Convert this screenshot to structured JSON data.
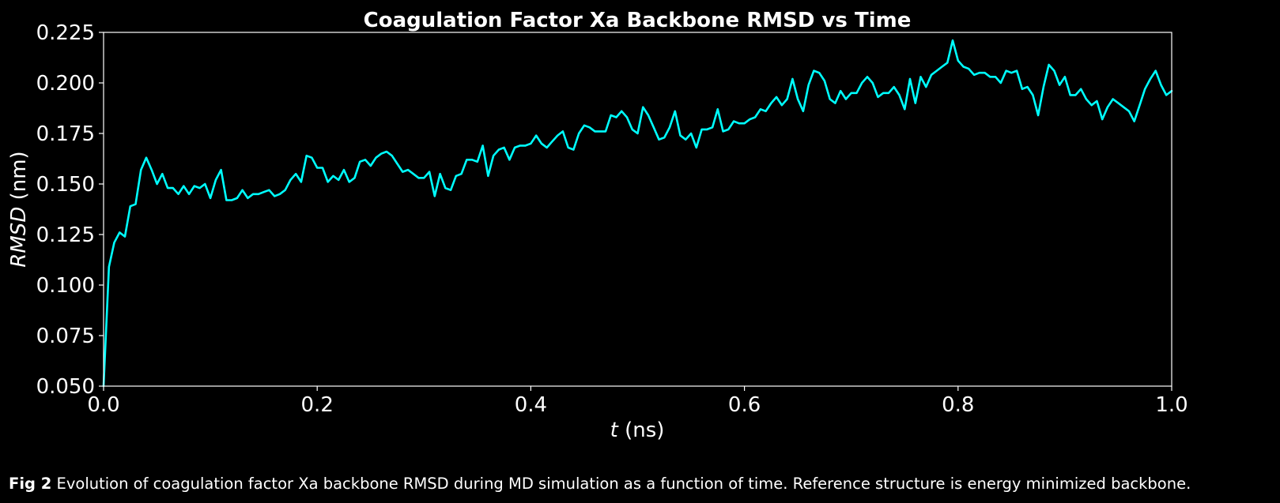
{
  "chart_data": {
    "type": "line",
    "title": "Coagulation Factor Xa Backbone RMSD vs Time",
    "xlabel_var": "t",
    "xlabel_unit": " (ns)",
    "ylabel_var": "RMSD",
    "ylabel_unit": " (nm)",
    "xlim": [
      0.0,
      1.0
    ],
    "ylim": [
      0.05,
      0.225
    ],
    "xticks": [
      "0.0",
      "0.2",
      "0.4",
      "0.6",
      "0.8",
      "1.0"
    ],
    "yticks": [
      "0.050",
      "0.075",
      "0.100",
      "0.125",
      "0.150",
      "0.175",
      "0.200",
      "0.225"
    ],
    "grid": false,
    "line_color": "#00ffff",
    "series": [
      {
        "x": [
          0.0,
          0.005,
          0.01,
          0.015,
          0.02,
          0.025,
          0.03,
          0.035,
          0.04,
          0.045,
          0.05,
          0.055,
          0.06,
          0.065,
          0.07,
          0.075,
          0.08,
          0.085,
          0.09,
          0.095,
          0.1,
          0.105,
          0.11,
          0.115,
          0.12,
          0.125,
          0.13,
          0.135,
          0.14,
          0.145,
          0.15,
          0.155,
          0.16,
          0.165,
          0.17,
          0.175,
          0.18,
          0.185,
          0.19,
          0.195,
          0.2,
          0.205,
          0.21,
          0.215,
          0.22,
          0.225,
          0.23,
          0.235,
          0.24,
          0.245,
          0.25,
          0.255,
          0.26,
          0.265,
          0.27,
          0.275,
          0.28,
          0.285,
          0.29,
          0.295,
          0.3,
          0.305,
          0.31,
          0.315,
          0.32,
          0.325,
          0.33,
          0.335,
          0.34,
          0.345,
          0.35,
          0.355,
          0.36,
          0.365,
          0.37,
          0.375,
          0.38,
          0.385,
          0.39,
          0.395,
          0.4,
          0.405,
          0.41,
          0.415,
          0.42,
          0.425,
          0.43,
          0.435,
          0.44,
          0.445,
          0.45,
          0.455,
          0.46,
          0.465,
          0.47,
          0.475,
          0.48,
          0.485,
          0.49,
          0.495,
          0.5,
          0.505,
          0.51,
          0.515,
          0.52,
          0.525,
          0.53,
          0.535,
          0.54,
          0.545,
          0.55,
          0.555,
          0.56,
          0.565,
          0.57,
          0.575,
          0.58,
          0.585,
          0.59,
          0.595,
          0.6,
          0.605,
          0.61,
          0.615,
          0.62,
          0.625,
          0.63,
          0.635,
          0.64,
          0.645,
          0.65,
          0.655,
          0.66,
          0.665,
          0.67,
          0.675,
          0.68,
          0.685,
          0.69,
          0.695,
          0.7,
          0.705,
          0.71,
          0.715,
          0.72,
          0.725,
          0.73,
          0.735,
          0.74,
          0.745,
          0.75,
          0.755,
          0.76,
          0.765,
          0.77,
          0.775,
          0.78,
          0.785,
          0.79,
          0.795,
          0.8,
          0.805,
          0.81,
          0.815,
          0.82,
          0.825,
          0.83,
          0.835,
          0.84,
          0.845,
          0.85,
          0.855,
          0.86,
          0.865,
          0.87,
          0.875,
          0.88,
          0.885,
          0.89,
          0.895,
          0.9,
          0.905,
          0.91,
          0.915,
          0.92,
          0.925,
          0.93,
          0.935,
          0.94,
          0.945,
          0.95,
          0.955,
          0.96,
          0.965,
          0.97,
          0.975,
          0.98,
          0.985,
          0.99,
          0.995,
          1.0
        ],
        "y": [
          0.05,
          0.109,
          0.121,
          0.126,
          0.124,
          0.139,
          0.14,
          0.157,
          0.163,
          0.157,
          0.15,
          0.155,
          0.148,
          0.148,
          0.145,
          0.149,
          0.145,
          0.149,
          0.148,
          0.15,
          0.143,
          0.152,
          0.157,
          0.142,
          0.142,
          0.143,
          0.147,
          0.143,
          0.145,
          0.145,
          0.146,
          0.147,
          0.144,
          0.145,
          0.147,
          0.152,
          0.155,
          0.151,
          0.164,
          0.163,
          0.158,
          0.158,
          0.151,
          0.154,
          0.152,
          0.157,
          0.151,
          0.153,
          0.161,
          0.162,
          0.159,
          0.163,
          0.165,
          0.166,
          0.164,
          0.16,
          0.156,
          0.157,
          0.155,
          0.153,
          0.153,
          0.156,
          0.144,
          0.155,
          0.148,
          0.147,
          0.154,
          0.155,
          0.162,
          0.162,
          0.161,
          0.169,
          0.154,
          0.164,
          0.167,
          0.168,
          0.162,
          0.168,
          0.169,
          0.169,
          0.17,
          0.174,
          0.17,
          0.168,
          0.171,
          0.174,
          0.176,
          0.168,
          0.167,
          0.175,
          0.179,
          0.178,
          0.176,
          0.176,
          0.176,
          0.184,
          0.183,
          0.186,
          0.183,
          0.177,
          0.175,
          0.188,
          0.184,
          0.178,
          0.172,
          0.173,
          0.178,
          0.186,
          0.174,
          0.172,
          0.175,
          0.168,
          0.177,
          0.177,
          0.178,
          0.187,
          0.176,
          0.177,
          0.181,
          0.18,
          0.18,
          0.182,
          0.183,
          0.187,
          0.186,
          0.19,
          0.193,
          0.189,
          0.192,
          0.202,
          0.192,
          0.186,
          0.199,
          0.206,
          0.205,
          0.201,
          0.192,
          0.19,
          0.196,
          0.192,
          0.195,
          0.195,
          0.2,
          0.203,
          0.2,
          0.193,
          0.195,
          0.195,
          0.198,
          0.194,
          0.187,
          0.202,
          0.19,
          0.203,
          0.198,
          0.204,
          0.206,
          0.208,
          0.21,
          0.221,
          0.211,
          0.208,
          0.207,
          0.204,
          0.205,
          0.205,
          0.203,
          0.203,
          0.2,
          0.206,
          0.205,
          0.206,
          0.197,
          0.198,
          0.194,
          0.184,
          0.198,
          0.209,
          0.206,
          0.199,
          0.203,
          0.194,
          0.194,
          0.197,
          0.192,
          0.189,
          0.191,
          0.182,
          0.188,
          0.192,
          0.19,
          0.188,
          0.186,
          0.181,
          0.189,
          0.197,
          0.202,
          0.206,
          0.199,
          0.194,
          0.196
        ]
      }
    ]
  },
  "caption": {
    "label": "Fig 2",
    "text": " Evolution of coagulation factor Xa backbone RMSD during MD simulation as a function of time. Reference structure is energy minimized backbone."
  }
}
